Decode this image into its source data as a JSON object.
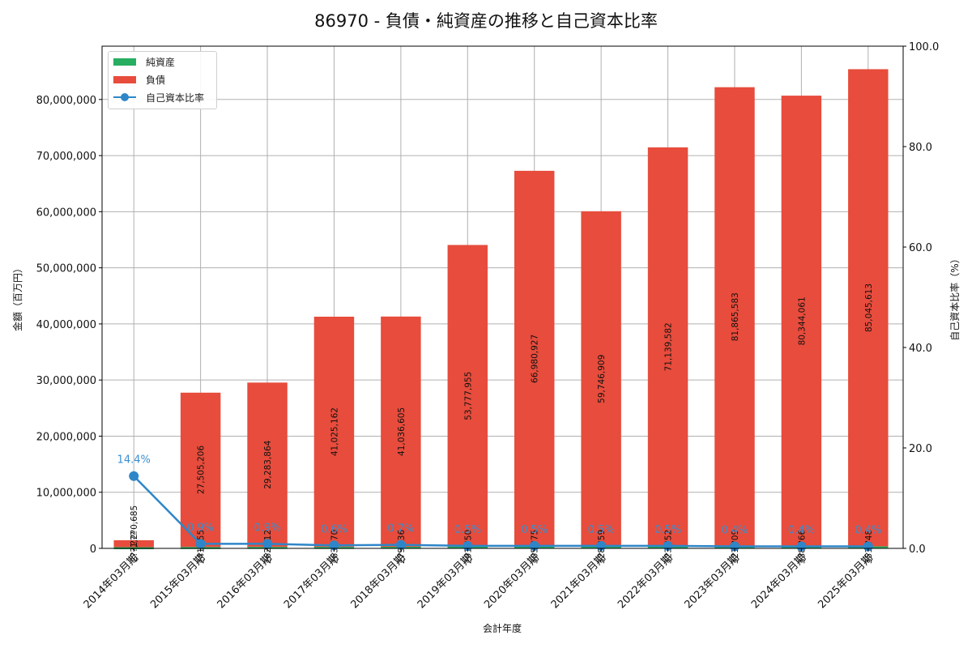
{
  "title": "86970 - 負債・純資産の推移と自己資本比率",
  "legend": {
    "items": [
      {
        "label": "純資産",
        "color": "#27ae60",
        "type": "bar"
      },
      {
        "label": "負債",
        "color": "#e74c3c",
        "type": "bar"
      },
      {
        "label": "自己資本比率",
        "color": "#2e86c8",
        "type": "line"
      }
    ]
  },
  "axes": {
    "xlabel": "会計年度",
    "ylabel_left": "金額（百万円）",
    "ylabel_right": "自己資本比率（%）",
    "left_ticks": [
      "0",
      "10,000,000",
      "20,000,000",
      "30,000,000",
      "40,000,000",
      "50,000,000",
      "60,000,000",
      "70,000,000",
      "80,000,000"
    ],
    "right_ticks": [
      "0.0",
      "20.0",
      "40.0",
      "60.0",
      "80.0",
      "100.0"
    ]
  },
  "chart_data": {
    "type": "bar",
    "title": "86970 - 負債・純資産の推移と自己資本比率",
    "xlabel": "会計年度",
    "ylabel": "金額（百万円）",
    "ylabel_right": "自己資本比率（%）",
    "ylim": [
      0,
      89500000
    ],
    "ylim_right": [
      0,
      100
    ],
    "grid": true,
    "legend_position": "upper left",
    "stacked": true,
    "categories": [
      "2014年03月期",
      "2015年03月期",
      "2016年03月期",
      "2017年03月期",
      "2018年03月期",
      "2019年03月期",
      "2020年03月期",
      "2021年03月期",
      "2022年03月期",
      "2023年03月期",
      "2024年03月期",
      "2025年03月期"
    ],
    "series": [
      {
        "name": "純資産",
        "type": "bar",
        "color": "#27ae60",
        "values": [
          208960,
          241655,
          262812,
          263870,
          279136,
          291150,
          305175,
          328159,
          323152,
          321909,
          338466,
          351448
        ],
        "labels": [
          "2??,???",
          "241,?55",
          "262,?12",
          "263,?70",
          "279,?36",
          "291,?50",
          "305,?75",
          "328,?59",
          "323,?52",
          "321,?09",
          "338,?66",
          "351,?48"
        ]
      },
      {
        "name": "負債",
        "type": "bar",
        "color": "#e74c3c",
        "values": [
          1240685,
          27505206,
          29283864,
          41025162,
          41036605,
          53777955,
          66980927,
          59746909,
          71139582,
          81865583,
          80344061,
          85045613
        ],
        "labels": [
          "1,2?0,685",
          "27,505,206",
          "29,283,864",
          "41,025,162",
          "41,036,605",
          "53,777,955",
          "66,980,927",
          "59,746,909",
          "71,139,582",
          "81,865,583",
          "80,344,061",
          "85,045,613"
        ]
      },
      {
        "name": "自己資本比率",
        "type": "line",
        "axis": "right",
        "color": "#2e86c8",
        "values": [
          14.4,
          0.9,
          0.9,
          0.6,
          0.7,
          0.5,
          0.5,
          0.5,
          0.5,
          0.4,
          0.4,
          0.4
        ],
        "labels": [
          "14.4%",
          "0.9%",
          "0.9%",
          "0.6%",
          "0.7%",
          "0.5%",
          "0.5%",
          "0.5%",
          "0.5%",
          "0.4%",
          "0.4%",
          "0.4%"
        ]
      }
    ]
  }
}
